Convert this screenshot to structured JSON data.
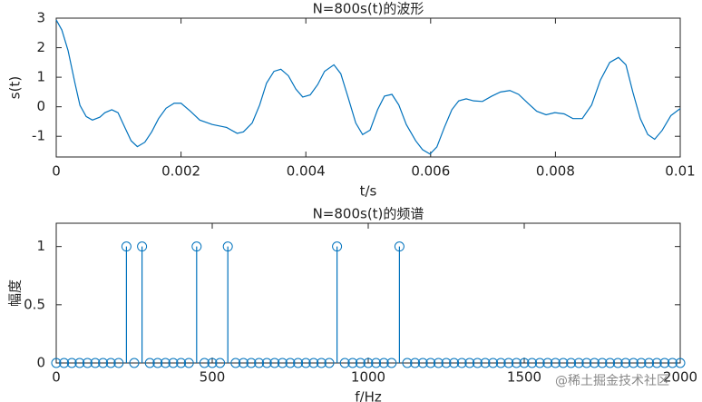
{
  "chart_data": [
    {
      "type": "line",
      "title": "N=800s(t)的波形",
      "x_label": "t/s",
      "y_label": "s(t)",
      "x": [
        0,
        9e-05,
        0.00019,
        0.0003,
        0.00038,
        0.00048,
        0.00058,
        0.0007,
        0.00078,
        0.00089,
        0.00099,
        0.0011,
        0.0012,
        0.0013,
        0.00142,
        0.00153,
        0.00164,
        0.00176,
        0.00189,
        0.002,
        0.00215,
        0.0023,
        0.0025,
        0.00273,
        0.0029,
        0.003,
        0.00314,
        0.00326,
        0.00337,
        0.00349,
        0.0036,
        0.00372,
        0.00384,
        0.00395,
        0.00407,
        0.00419,
        0.0043,
        0.00445,
        0.00456,
        0.00468,
        0.0048,
        0.00491,
        0.00503,
        0.00515,
        0.00526,
        0.00538,
        0.00549,
        0.00561,
        0.00576,
        0.00587,
        0.00599,
        0.0061,
        0.00622,
        0.00634,
        0.00645,
        0.00657,
        0.00669,
        0.00683,
        0.00698,
        0.00712,
        0.00727,
        0.00741,
        0.00756,
        0.0077,
        0.00785,
        0.00799,
        0.00814,
        0.00828,
        0.00843,
        0.00858,
        0.00872,
        0.00887,
        0.00901,
        0.00913,
        0.00924,
        0.00936,
        0.00948,
        0.00959,
        0.00971,
        0.00985,
        0.01
      ],
      "series": [
        {
          "name": "s(t)",
          "color": "#0072bd",
          "values": [
            2.94,
            2.6,
            1.9,
            0.8,
            0.05,
            -0.33,
            -0.45,
            -0.35,
            -0.2,
            -0.1,
            -0.2,
            -0.7,
            -1.15,
            -1.35,
            -1.2,
            -0.85,
            -0.4,
            -0.05,
            0.12,
            0.12,
            -0.15,
            -0.45,
            -0.6,
            -0.7,
            -0.9,
            -0.85,
            -0.55,
            0.06,
            0.8,
            1.2,
            1.27,
            1.05,
            0.6,
            0.33,
            0.4,
            0.75,
            1.2,
            1.42,
            1.12,
            0.3,
            -0.55,
            -0.94,
            -0.79,
            -0.1,
            0.36,
            0.42,
            0.06,
            -0.6,
            -1.15,
            -1.45,
            -1.6,
            -1.36,
            -0.7,
            -0.1,
            0.2,
            0.27,
            0.2,
            0.18,
            0.36,
            0.5,
            0.55,
            0.42,
            0.12,
            -0.15,
            -0.27,
            -0.2,
            -0.24,
            -0.4,
            -0.4,
            0.06,
            0.9,
            1.5,
            1.67,
            1.42,
            0.5,
            -0.4,
            -0.94,
            -1.1,
            -0.8,
            -0.3,
            -0.06
          ]
        }
      ],
      "xlim": [
        0,
        0.01
      ],
      "xticks": [
        0,
        0.002,
        0.004,
        0.006,
        0.008,
        0.01
      ],
      "ylim": [
        -1.7,
        3
      ],
      "yticks": [
        -1,
        0,
        1,
        2,
        3
      ]
    },
    {
      "type": "stem",
      "title": "N=800s(t)的频谱",
      "x_label": "f/Hz",
      "y_label": "幅度",
      "x": [
        0,
        25,
        50,
        75,
        100,
        125,
        150,
        175,
        200,
        225,
        250,
        275,
        300,
        325,
        350,
        375,
        400,
        425,
        450,
        475,
        500,
        525,
        550,
        575,
        600,
        625,
        650,
        675,
        700,
        725,
        750,
        775,
        800,
        825,
        850,
        875,
        900,
        925,
        950,
        975,
        1000,
        1025,
        1050,
        1075,
        1100,
        1125,
        1150,
        1175,
        1200,
        1225,
        1250,
        1275,
        1300,
        1325,
        1350,
        1375,
        1400,
        1425,
        1450,
        1475,
        1500,
        1525,
        1550,
        1575,
        1600,
        1625,
        1650,
        1675,
        1700,
        1725,
        1750,
        1775,
        1800,
        1825,
        1850,
        1875,
        1900,
        1925,
        1950,
        1975,
        2000
      ],
      "series": [
        {
          "name": "幅度",
          "color": "#0072bd",
          "values": [
            0,
            0,
            0,
            0,
            0,
            0,
            0,
            0,
            0,
            1,
            0,
            1,
            0,
            0,
            0,
            0,
            0,
            0,
            1,
            0,
            0,
            0,
            1,
            0,
            0,
            0,
            0,
            0,
            0,
            0,
            0,
            0,
            0,
            0,
            0,
            0,
            1,
            0,
            0,
            0,
            0,
            0,
            0,
            0,
            1,
            0,
            0,
            0,
            0,
            0,
            0,
            0,
            0,
            0,
            0,
            0,
            0,
            0,
            0,
            0,
            0,
            0,
            0,
            0,
            0,
            0,
            0,
            0,
            0,
            0,
            0,
            0,
            0,
            0,
            0,
            0,
            0,
            0,
            0,
            0,
            0
          ]
        }
      ],
      "xlim": [
        0,
        2000
      ],
      "xticks": [
        0,
        500,
        1000,
        1500,
        2000
      ],
      "ylim": [
        0,
        1.2
      ],
      "yticks": [
        0,
        0.5,
        1
      ]
    }
  ],
  "watermark": "@稀土掘金技术社区"
}
